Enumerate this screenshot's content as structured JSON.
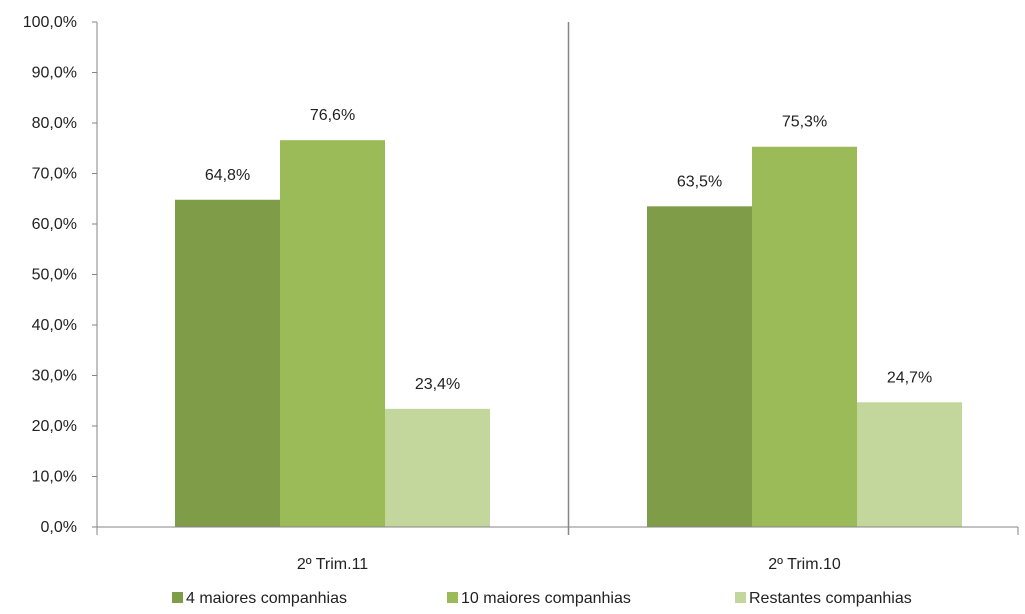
{
  "chart_data": {
    "type": "bar",
    "categories": [
      "2º Trim.11",
      "2º Trim.10"
    ],
    "series": [
      {
        "name": "4 maiores companhias",
        "color": "#7f9c49",
        "values": [
          64.8,
          63.5
        ],
        "labels": [
          "64,8%",
          "63,5%"
        ]
      },
      {
        "name": "10 maiores companhias",
        "color": "#9bbb59",
        "values": [
          76.6,
          75.3
        ],
        "labels": [
          "76,6%",
          "75,3%"
        ]
      },
      {
        "name": "Restantes companhias",
        "color": "#c3d69b",
        "values": [
          23.4,
          24.7
        ],
        "labels": [
          "23,4%",
          "24,7%"
        ]
      }
    ],
    "ylim": [
      0,
      100
    ],
    "yticks": [
      0,
      10,
      20,
      30,
      40,
      50,
      60,
      70,
      80,
      90,
      100
    ],
    "ytick_labels": [
      "0,0%",
      "10,0%",
      "20,0%",
      "30,0%",
      "40,0%",
      "50,0%",
      "60,0%",
      "70,0%",
      "80,0%",
      "90,0%",
      "100,0%"
    ],
    "grid": false,
    "legend_position": "bottom",
    "xlabel": "",
    "ylabel": "",
    "title": ""
  }
}
